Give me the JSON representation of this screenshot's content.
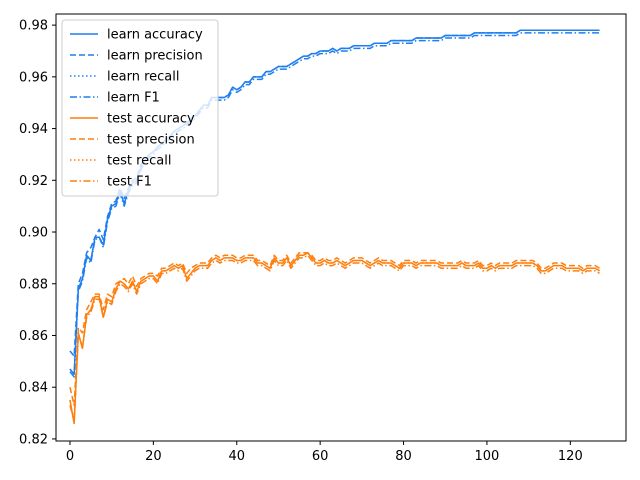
{
  "chart_data": {
    "type": "line",
    "title": "",
    "xlabel": "",
    "ylabel": "",
    "xlim": [
      -3.35,
      133.35
    ],
    "ylim": [
      0.8192,
      0.9843
    ],
    "xticks": [
      0,
      20,
      40,
      60,
      80,
      100,
      120
    ],
    "yticks": [
      0.82,
      0.84,
      0.86,
      0.88,
      0.9,
      0.92,
      0.94,
      0.96,
      0.98
    ],
    "grid": false,
    "legend_location": "top-left",
    "colors": {
      "learn": "#1f7ff0",
      "test": "#ff7f0e"
    },
    "x_step": 1,
    "series": [
      {
        "name": "learn accuracy",
        "group": "learn",
        "style": "solid",
        "values": [
          0.847,
          0.845,
          0.878,
          0.882,
          0.891,
          0.889,
          0.898,
          0.898,
          0.895,
          0.905,
          0.91,
          0.911,
          0.916,
          0.911,
          0.916,
          0.919,
          0.92,
          0.925,
          0.928,
          0.93,
          0.931,
          0.933,
          0.934,
          0.936,
          0.937,
          0.939,
          0.94,
          0.941,
          0.942,
          0.944,
          0.945,
          0.947,
          0.949,
          0.949,
          0.952,
          0.952,
          0.952,
          0.952,
          0.953,
          0.956,
          0.955,
          0.956,
          0.958,
          0.958,
          0.96,
          0.96,
          0.96,
          0.962,
          0.962,
          0.963,
          0.964,
          0.964,
          0.964,
          0.965,
          0.966,
          0.967,
          0.968,
          0.968,
          0.969,
          0.969,
          0.97,
          0.97,
          0.97,
          0.971,
          0.97,
          0.971,
          0.971,
          0.971,
          0.972,
          0.972,
          0.972,
          0.972,
          0.972,
          0.973,
          0.973,
          0.973,
          0.973,
          0.974,
          0.974,
          0.974,
          0.974,
          0.974,
          0.974,
          0.975,
          0.975,
          0.975,
          0.975,
          0.975,
          0.975,
          0.975,
          0.976,
          0.976,
          0.976,
          0.976,
          0.976,
          0.976,
          0.976,
          0.977,
          0.977,
          0.977,
          0.977,
          0.977,
          0.977,
          0.977,
          0.977,
          0.977,
          0.977,
          0.977,
          0.978,
          0.978,
          0.978,
          0.978,
          0.978,
          0.978,
          0.978,
          0.978,
          0.978,
          0.978,
          0.978,
          0.978,
          0.978,
          0.978,
          0.978,
          0.978,
          0.978,
          0.978,
          0.978,
          0.978
        ]
      },
      {
        "name": "learn precision",
        "group": "learn",
        "style": "dashed",
        "values": [
          0.854,
          0.852,
          0.88,
          0.884,
          0.892,
          0.894,
          0.898,
          0.901,
          0.897,
          0.906,
          0.911,
          0.912,
          0.917,
          0.913,
          0.917,
          0.92,
          0.921,
          0.926,
          0.928,
          0.93,
          0.931,
          0.933,
          0.934,
          0.936,
          0.937,
          0.939,
          0.94,
          0.941,
          0.942,
          0.944,
          0.945,
          0.947,
          0.949,
          0.949,
          0.952,
          0.952,
          0.952,
          0.952,
          0.953,
          0.956,
          0.955,
          0.956,
          0.958,
          0.958,
          0.96,
          0.96,
          0.96,
          0.962,
          0.962,
          0.963,
          0.964,
          0.964,
          0.964,
          0.965,
          0.966,
          0.967,
          0.968,
          0.968,
          0.969,
          0.969,
          0.97,
          0.97,
          0.97,
          0.971,
          0.97,
          0.971,
          0.971,
          0.971,
          0.972,
          0.972,
          0.972,
          0.972,
          0.972,
          0.973,
          0.973,
          0.973,
          0.973,
          0.974,
          0.974,
          0.974,
          0.974,
          0.974,
          0.974,
          0.975,
          0.975,
          0.975,
          0.975,
          0.975,
          0.975,
          0.975,
          0.976,
          0.976,
          0.976,
          0.976,
          0.976,
          0.976,
          0.976,
          0.977,
          0.977,
          0.977,
          0.977,
          0.977,
          0.977,
          0.977,
          0.977,
          0.977,
          0.977,
          0.977,
          0.978,
          0.978,
          0.978,
          0.978,
          0.978,
          0.978,
          0.978,
          0.978,
          0.978,
          0.978,
          0.978,
          0.978,
          0.978,
          0.978,
          0.978,
          0.978,
          0.978,
          0.978,
          0.978,
          0.978
        ]
      },
      {
        "name": "learn recall",
        "group": "learn",
        "style": "dotted",
        "values": [
          0.847,
          0.845,
          0.878,
          0.882,
          0.891,
          0.889,
          0.898,
          0.898,
          0.895,
          0.905,
          0.91,
          0.911,
          0.916,
          0.911,
          0.916,
          0.919,
          0.92,
          0.925,
          0.928,
          0.93,
          0.931,
          0.933,
          0.934,
          0.936,
          0.937,
          0.939,
          0.94,
          0.941,
          0.942,
          0.944,
          0.945,
          0.947,
          0.949,
          0.949,
          0.952,
          0.952,
          0.952,
          0.952,
          0.953,
          0.956,
          0.955,
          0.956,
          0.958,
          0.958,
          0.96,
          0.96,
          0.96,
          0.962,
          0.962,
          0.963,
          0.964,
          0.964,
          0.964,
          0.965,
          0.966,
          0.967,
          0.968,
          0.968,
          0.969,
          0.969,
          0.97,
          0.97,
          0.97,
          0.971,
          0.97,
          0.971,
          0.971,
          0.971,
          0.972,
          0.972,
          0.972,
          0.972,
          0.972,
          0.973,
          0.973,
          0.973,
          0.973,
          0.974,
          0.974,
          0.974,
          0.974,
          0.974,
          0.974,
          0.975,
          0.975,
          0.975,
          0.975,
          0.975,
          0.975,
          0.975,
          0.976,
          0.976,
          0.976,
          0.976,
          0.976,
          0.976,
          0.976,
          0.977,
          0.977,
          0.977,
          0.977,
          0.977,
          0.977,
          0.977,
          0.977,
          0.977,
          0.977,
          0.977,
          0.978,
          0.978,
          0.978,
          0.978,
          0.978,
          0.978,
          0.978,
          0.978,
          0.978,
          0.978,
          0.978,
          0.978,
          0.978,
          0.978,
          0.978,
          0.978,
          0.978,
          0.978,
          0.978,
          0.978
        ]
      },
      {
        "name": "learn F1",
        "group": "learn",
        "style": "dashdot",
        "values": [
          0.846,
          0.844,
          0.877,
          0.881,
          0.89,
          0.888,
          0.897,
          0.898,
          0.894,
          0.904,
          0.909,
          0.91,
          0.915,
          0.91,
          0.915,
          0.918,
          0.919,
          0.924,
          0.927,
          0.929,
          0.93,
          0.932,
          0.933,
          0.935,
          0.936,
          0.938,
          0.939,
          0.94,
          0.941,
          0.943,
          0.944,
          0.946,
          0.948,
          0.948,
          0.951,
          0.951,
          0.951,
          0.951,
          0.952,
          0.955,
          0.954,
          0.955,
          0.957,
          0.957,
          0.959,
          0.959,
          0.959,
          0.961,
          0.961,
          0.962,
          0.963,
          0.963,
          0.963,
          0.964,
          0.965,
          0.966,
          0.967,
          0.967,
          0.968,
          0.968,
          0.969,
          0.969,
          0.969,
          0.97,
          0.969,
          0.97,
          0.97,
          0.97,
          0.971,
          0.971,
          0.971,
          0.971,
          0.971,
          0.972,
          0.972,
          0.972,
          0.972,
          0.973,
          0.973,
          0.973,
          0.973,
          0.973,
          0.973,
          0.974,
          0.974,
          0.974,
          0.974,
          0.974,
          0.974,
          0.974,
          0.975,
          0.975,
          0.975,
          0.975,
          0.975,
          0.975,
          0.975,
          0.976,
          0.976,
          0.976,
          0.976,
          0.976,
          0.976,
          0.976,
          0.976,
          0.976,
          0.976,
          0.976,
          0.977,
          0.977,
          0.977,
          0.977,
          0.977,
          0.977,
          0.977,
          0.977,
          0.977,
          0.977,
          0.977,
          0.977,
          0.977,
          0.977,
          0.977,
          0.977,
          0.977,
          0.977,
          0.977,
          0.977
        ]
      },
      {
        "name": "test accuracy",
        "group": "test",
        "style": "solid",
        "values": [
          0.835,
          0.826,
          0.861,
          0.855,
          0.868,
          0.87,
          0.875,
          0.875,
          0.867,
          0.874,
          0.873,
          0.878,
          0.881,
          0.88,
          0.878,
          0.881,
          0.877,
          0.881,
          0.882,
          0.883,
          0.883,
          0.881,
          0.885,
          0.885,
          0.886,
          0.887,
          0.886,
          0.887,
          0.882,
          0.884,
          0.886,
          0.887,
          0.887,
          0.887,
          0.889,
          0.89,
          0.889,
          0.89,
          0.89,
          0.89,
          0.889,
          0.889,
          0.89,
          0.89,
          0.89,
          0.888,
          0.888,
          0.887,
          0.886,
          0.89,
          0.888,
          0.888,
          0.89,
          0.887,
          0.889,
          0.891,
          0.891,
          0.892,
          0.89,
          0.888,
          0.888,
          0.889,
          0.888,
          0.888,
          0.889,
          0.888,
          0.887,
          0.888,
          0.889,
          0.889,
          0.889,
          0.888,
          0.887,
          0.888,
          0.889,
          0.888,
          0.888,
          0.888,
          0.887,
          0.886,
          0.888,
          0.888,
          0.888,
          0.887,
          0.888,
          0.888,
          0.888,
          0.888,
          0.888,
          0.887,
          0.887,
          0.887,
          0.887,
          0.887,
          0.888,
          0.887,
          0.887,
          0.887,
          0.888,
          0.886,
          0.886,
          0.887,
          0.886,
          0.887,
          0.887,
          0.887,
          0.887,
          0.888,
          0.888,
          0.888,
          0.888,
          0.888,
          0.887,
          0.885,
          0.885,
          0.886,
          0.887,
          0.887,
          0.887,
          0.886,
          0.886,
          0.886,
          0.886,
          0.885,
          0.886,
          0.886,
          0.886,
          0.885
        ]
      },
      {
        "name": "test precision",
        "group": "test",
        "style": "dashed",
        "values": [
          0.84,
          0.833,
          0.863,
          0.861,
          0.87,
          0.873,
          0.876,
          0.876,
          0.87,
          0.876,
          0.875,
          0.88,
          0.881,
          0.882,
          0.88,
          0.883,
          0.879,
          0.882,
          0.883,
          0.884,
          0.884,
          0.883,
          0.886,
          0.886,
          0.887,
          0.888,
          0.887,
          0.888,
          0.884,
          0.886,
          0.887,
          0.888,
          0.888,
          0.888,
          0.89,
          0.891,
          0.89,
          0.891,
          0.891,
          0.891,
          0.89,
          0.89,
          0.891,
          0.891,
          0.891,
          0.889,
          0.889,
          0.888,
          0.887,
          0.891,
          0.889,
          0.889,
          0.891,
          0.888,
          0.89,
          0.892,
          0.892,
          0.892,
          0.891,
          0.889,
          0.889,
          0.89,
          0.889,
          0.889,
          0.89,
          0.889,
          0.888,
          0.889,
          0.89,
          0.89,
          0.89,
          0.889,
          0.888,
          0.889,
          0.89,
          0.889,
          0.889,
          0.889,
          0.888,
          0.887,
          0.889,
          0.889,
          0.889,
          0.888,
          0.889,
          0.889,
          0.889,
          0.889,
          0.889,
          0.888,
          0.888,
          0.888,
          0.888,
          0.888,
          0.889,
          0.888,
          0.888,
          0.888,
          0.889,
          0.887,
          0.887,
          0.888,
          0.887,
          0.888,
          0.888,
          0.888,
          0.888,
          0.889,
          0.889,
          0.889,
          0.889,
          0.889,
          0.888,
          0.886,
          0.886,
          0.887,
          0.888,
          0.888,
          0.888,
          0.887,
          0.887,
          0.887,
          0.887,
          0.886,
          0.887,
          0.887,
          0.887,
          0.886
        ]
      },
      {
        "name": "test recall",
        "group": "test",
        "style": "dotted",
        "values": [
          0.835,
          0.826,
          0.861,
          0.855,
          0.868,
          0.87,
          0.875,
          0.875,
          0.867,
          0.874,
          0.873,
          0.878,
          0.881,
          0.88,
          0.878,
          0.881,
          0.877,
          0.881,
          0.882,
          0.883,
          0.883,
          0.881,
          0.885,
          0.885,
          0.886,
          0.887,
          0.886,
          0.887,
          0.882,
          0.884,
          0.886,
          0.887,
          0.887,
          0.887,
          0.889,
          0.89,
          0.889,
          0.89,
          0.89,
          0.89,
          0.889,
          0.889,
          0.89,
          0.89,
          0.89,
          0.888,
          0.888,
          0.887,
          0.886,
          0.89,
          0.888,
          0.888,
          0.89,
          0.887,
          0.889,
          0.891,
          0.891,
          0.892,
          0.89,
          0.888,
          0.888,
          0.889,
          0.888,
          0.888,
          0.889,
          0.888,
          0.887,
          0.888,
          0.889,
          0.889,
          0.889,
          0.888,
          0.887,
          0.888,
          0.889,
          0.888,
          0.888,
          0.888,
          0.887,
          0.886,
          0.888,
          0.888,
          0.888,
          0.887,
          0.888,
          0.888,
          0.888,
          0.888,
          0.888,
          0.887,
          0.887,
          0.887,
          0.887,
          0.887,
          0.888,
          0.887,
          0.887,
          0.887,
          0.888,
          0.886,
          0.886,
          0.887,
          0.886,
          0.887,
          0.887,
          0.887,
          0.887,
          0.888,
          0.888,
          0.888,
          0.888,
          0.888,
          0.887,
          0.885,
          0.885,
          0.886,
          0.887,
          0.887,
          0.887,
          0.886,
          0.886,
          0.886,
          0.886,
          0.885,
          0.886,
          0.886,
          0.886,
          0.885
        ]
      },
      {
        "name": "test F1",
        "group": "test",
        "style": "dashdot",
        "values": [
          0.833,
          0.827,
          0.86,
          0.856,
          0.867,
          0.869,
          0.874,
          0.874,
          0.867,
          0.873,
          0.872,
          0.877,
          0.88,
          0.879,
          0.877,
          0.88,
          0.876,
          0.88,
          0.881,
          0.882,
          0.882,
          0.88,
          0.884,
          0.884,
          0.885,
          0.886,
          0.885,
          0.886,
          0.881,
          0.883,
          0.885,
          0.886,
          0.886,
          0.886,
          0.888,
          0.889,
          0.888,
          0.889,
          0.889,
          0.889,
          0.888,
          0.888,
          0.889,
          0.889,
          0.889,
          0.887,
          0.887,
          0.886,
          0.885,
          0.889,
          0.887,
          0.887,
          0.889,
          0.886,
          0.888,
          0.89,
          0.89,
          0.891,
          0.889,
          0.887,
          0.887,
          0.888,
          0.887,
          0.887,
          0.888,
          0.887,
          0.886,
          0.887,
          0.888,
          0.888,
          0.888,
          0.887,
          0.886,
          0.887,
          0.888,
          0.887,
          0.887,
          0.887,
          0.886,
          0.885,
          0.887,
          0.887,
          0.887,
          0.886,
          0.887,
          0.887,
          0.887,
          0.887,
          0.887,
          0.886,
          0.886,
          0.886,
          0.886,
          0.886,
          0.887,
          0.886,
          0.886,
          0.886,
          0.887,
          0.885,
          0.885,
          0.886,
          0.885,
          0.886,
          0.886,
          0.886,
          0.886,
          0.887,
          0.887,
          0.887,
          0.887,
          0.887,
          0.886,
          0.884,
          0.884,
          0.885,
          0.886,
          0.886,
          0.886,
          0.885,
          0.885,
          0.885,
          0.885,
          0.884,
          0.885,
          0.885,
          0.885,
          0.884
        ]
      }
    ]
  }
}
